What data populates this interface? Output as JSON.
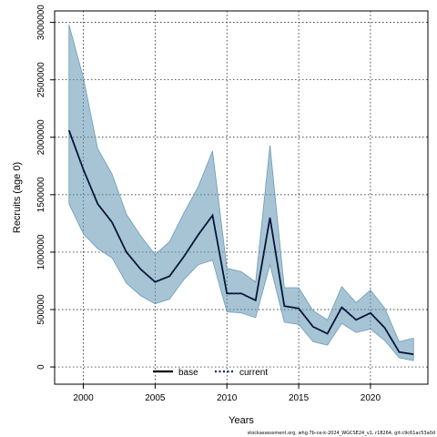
{
  "chart_data": {
    "type": "line",
    "title": "",
    "xlabel": "Years",
    "ylabel": "Recruits (age 0)",
    "xlim": [
      1998,
      2024
    ],
    "ylim": [
      -150000,
      3100000
    ],
    "x_ticks": [
      2000,
      2005,
      2010,
      2015,
      2020
    ],
    "x_tick_labels": [
      "2000",
      "2005",
      "2010",
      "2015",
      "2020"
    ],
    "y_ticks": [
      0,
      500000,
      1000000,
      1500000,
      2000000,
      2500000,
      3000000
    ],
    "y_tick_labels": [
      "0",
      "500000",
      "1000000",
      "1500000",
      "2000000",
      "2500000",
      "3000000"
    ],
    "grid": true,
    "legend_position": "bottom-center",
    "x": [
      1999,
      2000,
      2001,
      2002,
      2003,
      2004,
      2005,
      2006,
      2007,
      2008,
      2009,
      2010,
      2011,
      2012,
      2013,
      2014,
      2015,
      2016,
      2017,
      2018,
      2019,
      2020,
      2021,
      2022,
      2023
    ],
    "series": [
      {
        "name": "base",
        "color": "#000000",
        "style": "solid",
        "values": [
          2060000,
          1720000,
          1420000,
          1260000,
          1000000,
          850000,
          740000,
          790000,
          960000,
          1150000,
          1320000,
          640000,
          640000,
          580000,
          1300000,
          530000,
          510000,
          350000,
          290000,
          520000,
          410000,
          470000,
          340000,
          130000,
          110000
        ]
      },
      {
        "name": "current",
        "color": "#0a2a6a",
        "style": "dotted",
        "values": [
          2060000,
          1720000,
          1420000,
          1260000,
          1000000,
          850000,
          740000,
          790000,
          960000,
          1150000,
          1320000,
          640000,
          640000,
          580000,
          1300000,
          530000,
          510000,
          350000,
          290000,
          520000,
          410000,
          470000,
          340000,
          130000,
          110000
        ]
      }
    ],
    "ci_band": {
      "color": "#5f93b2",
      "upper": [
        2980000,
        2520000,
        1900000,
        1680000,
        1330000,
        1140000,
        980000,
        1090000,
        1340000,
        1570000,
        1880000,
        860000,
        830000,
        740000,
        1930000,
        690000,
        690000,
        490000,
        410000,
        700000,
        560000,
        670000,
        510000,
        220000,
        250000
      ],
      "lower": [
        1420000,
        1160000,
        1030000,
        950000,
        730000,
        620000,
        550000,
        590000,
        760000,
        890000,
        930000,
        480000,
        470000,
        430000,
        890000,
        390000,
        370000,
        220000,
        190000,
        380000,
        300000,
        330000,
        230000,
        80000,
        55000
      ]
    }
  },
  "footnote": "stockassessment.org, whg.7b-ce-k-2024_WGCSE24_v1, r18264, git:c9c61ac53a0d"
}
